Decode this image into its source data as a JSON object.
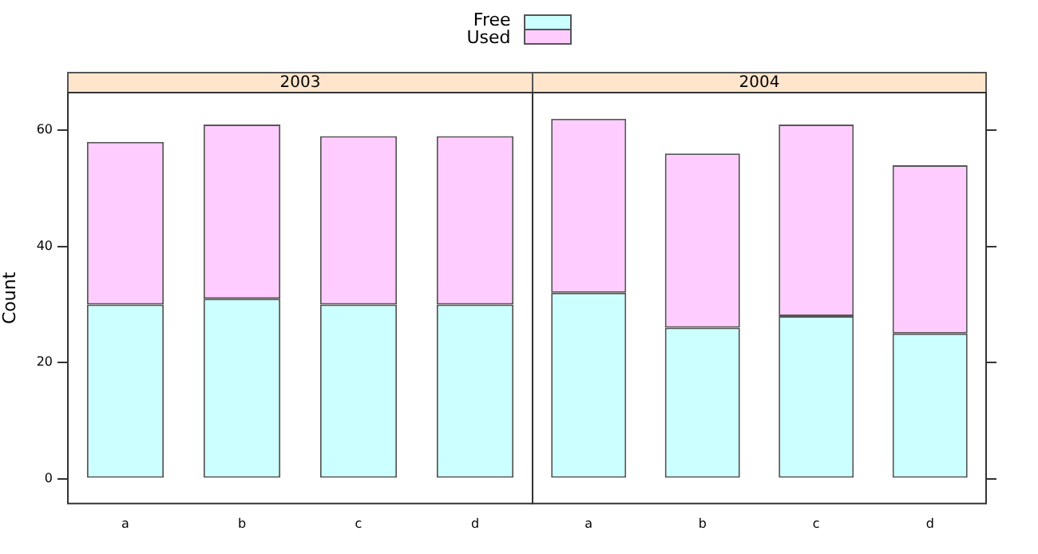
{
  "chart_data": [
    {
      "type": "bar",
      "title": "2003",
      "ylabel": "Count",
      "categories": [
        "a",
        "b",
        "c",
        "d"
      ],
      "stacked": true,
      "legend": "top",
      "grid": false,
      "ylim": [
        -4.3,
        66.5
      ],
      "yticks": [
        0,
        20,
        40,
        60
      ],
      "series": [
        {
          "name": "Free",
          "color": "#ccffff",
          "values": [
            30,
            31,
            30,
            30
          ]
        },
        {
          "name": "Used",
          "color": "#ffccff",
          "values": [
            28,
            30,
            29,
            29
          ]
        }
      ]
    },
    {
      "type": "bar",
      "title": "2004",
      "categories": [
        "a",
        "b",
        "c",
        "d"
      ],
      "stacked": true,
      "grid": false,
      "tick_labels": "x",
      "ylim": [
        -4.3,
        66.5
      ],
      "yticks": [
        0,
        20,
        40,
        60
      ],
      "series": [
        {
          "color": "#ccffff",
          "values": [
            32,
            26,
            28,
            25
          ]
        },
        {
          "color": "#ffccff",
          "values": [
            30,
            30,
            33,
            29
          ]
        }
      ]
    }
  ]
}
